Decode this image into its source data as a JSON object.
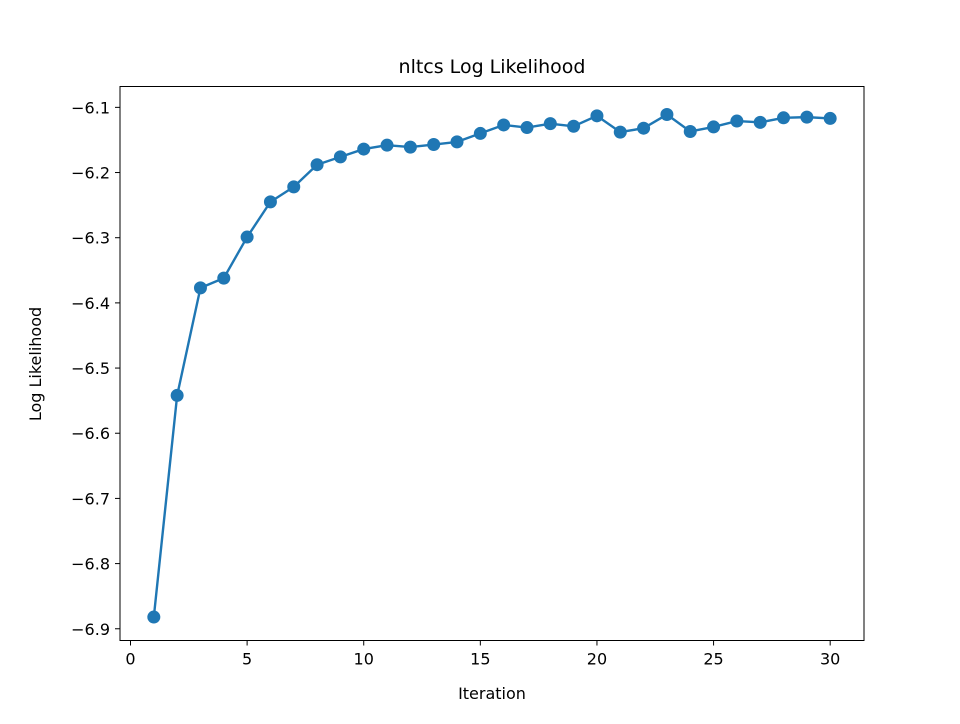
{
  "chart_data": {
    "type": "line",
    "title": "nltcs Log Likelihood",
    "xlabel": "Iteration",
    "ylabel": "Log Likelihood",
    "xlim": [
      -0.45,
      31.45
    ],
    "ylim": [
      -6.918,
      -6.068
    ],
    "x_ticks": [
      0,
      5,
      10,
      15,
      20,
      25,
      30
    ],
    "x_tick_labels": [
      "0",
      "5",
      "10",
      "15",
      "20",
      "25",
      "30"
    ],
    "y_ticks": [
      -6.1,
      -6.2,
      -6.3,
      -6.4,
      -6.5,
      -6.6,
      -6.7,
      -6.8,
      -6.9
    ],
    "y_tick_labels": [
      "−6.1",
      "−6.2",
      "−6.3",
      "−6.4",
      "−6.5",
      "−6.6",
      "−6.7",
      "−6.8",
      "−6.9"
    ],
    "grid": false,
    "series": [
      {
        "color": "#1f77b4",
        "marker": "circle",
        "x": [
          1,
          2,
          3,
          4,
          5,
          6,
          7,
          8,
          9,
          10,
          11,
          12,
          13,
          14,
          15,
          16,
          17,
          18,
          19,
          20,
          21,
          22,
          23,
          24,
          25,
          26,
          27,
          28,
          29,
          30
        ],
        "y": [
          -6.882,
          -6.542,
          -6.377,
          -6.362,
          -6.299,
          -6.245,
          -6.222,
          -6.188,
          -6.176,
          -6.164,
          -6.158,
          -6.161,
          -6.157,
          -6.153,
          -6.14,
          -6.127,
          -6.131,
          -6.125,
          -6.129,
          -6.113,
          -6.138,
          -6.132,
          -6.111,
          -6.137,
          -6.13,
          -6.121,
          -6.123,
          -6.116,
          -6.115,
          -6.117
        ]
      }
    ]
  }
}
